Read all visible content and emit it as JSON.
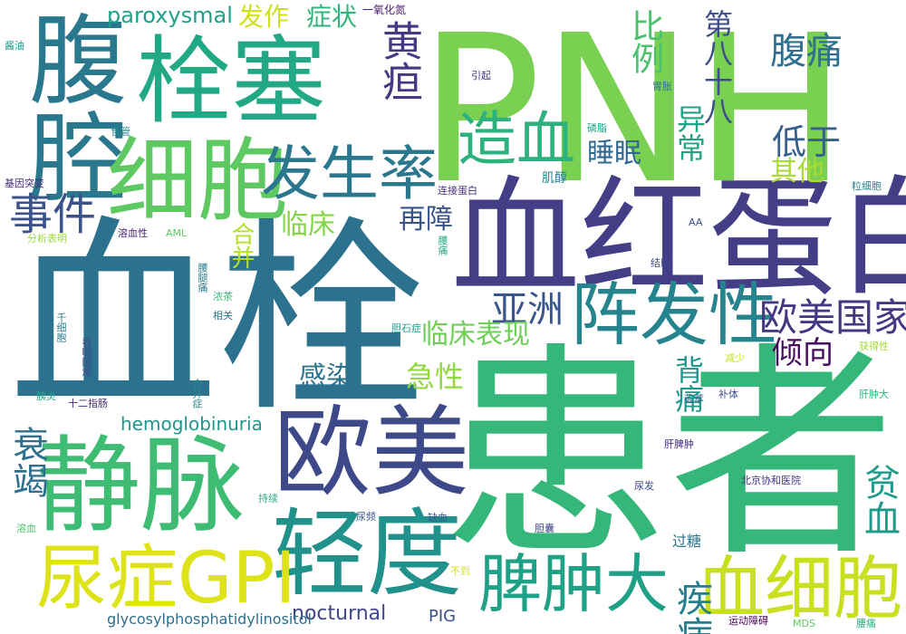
{
  "word_cloud": {
    "words": [
      {
        "text": "PNH",
        "color": "#7ad151"
      },
      {
        "text": "血栓",
        "color": "#2c728e"
      },
      {
        "text": "患者",
        "color": "#35b779"
      },
      {
        "text": "血红蛋白",
        "color": "#433e85"
      },
      {
        "text": "栓塞",
        "color": "#22a884"
      },
      {
        "text": "腹腔",
        "color": "#2a788e"
      },
      {
        "text": "细胞",
        "color": "#5ec962"
      },
      {
        "text": "静脉",
        "color": "#3fbc73"
      },
      {
        "text": "欧美",
        "color": "#3e4989"
      },
      {
        "text": "轻度",
        "color": "#21918c"
      },
      {
        "text": "尿症GPI",
        "color": "#dde318"
      },
      {
        "text": "血细胞",
        "color": "#c8e020"
      },
      {
        "text": "阵发性",
        "color": "#25848e"
      },
      {
        "text": "脾肿大",
        "color": "#1fa187"
      },
      {
        "text": "发生率",
        "color": "#2a778e"
      },
      {
        "text": "造血",
        "color": "#2db27d"
      },
      {
        "text": "黄疸",
        "color": "#443983"
      },
      {
        "text": "事件",
        "color": "#3b528b"
      },
      {
        "text": "衰竭",
        "color": "#2d708e"
      },
      {
        "text": "腹痛",
        "color": "#2e6e8e"
      },
      {
        "text": "比例",
        "color": "#4ac16d"
      },
      {
        "text": "第八十八",
        "color": "#3d4d8a"
      },
      {
        "text": "异常",
        "color": "#20a386"
      },
      {
        "text": "低于",
        "color": "#355f8d"
      },
      {
        "text": "睡眠",
        "color": "#31688e"
      },
      {
        "text": "其他",
        "color": "#a8db34"
      },
      {
        "text": "欧美国家",
        "color": "#453781"
      },
      {
        "text": "亚洲",
        "color": "#39558c"
      },
      {
        "text": "临床表现",
        "color": "#6ece58"
      },
      {
        "text": "倾向",
        "color": "#470d60"
      },
      {
        "text": "再障",
        "color": "#3a538b"
      },
      {
        "text": "合并",
        "color": "#b5de2b"
      },
      {
        "text": "临床",
        "color": "#86d549"
      },
      {
        "text": "感染",
        "color": "#2c738e"
      },
      {
        "text": "急性",
        "color": "#93d741"
      },
      {
        "text": "背痛",
        "color": "#1f988b"
      },
      {
        "text": "贫血",
        "color": "#1e9b8a"
      },
      {
        "text": "疾病",
        "color": "#277f8e"
      },
      {
        "text": "paroxysmal",
        "color": "#1fa088"
      },
      {
        "text": "发作",
        "color": "#d0e11c"
      },
      {
        "text": "症状",
        "color": "#31b57b"
      },
      {
        "text": "hemoglobinuria",
        "color": "#1f958b"
      },
      {
        "text": "nocturnal",
        "color": "#404588"
      },
      {
        "text": "glycosylphosphatidylinositol",
        "color": "#2e6f8e"
      },
      {
        "text": "PIG",
        "color": "#3b518b"
      },
      {
        "text": "过糖",
        "color": "#2b758e"
      },
      {
        "text": "一氧化氮",
        "color": "#481b6d"
      },
      {
        "text": "酱油",
        "color": "#20928c"
      },
      {
        "text": "食管",
        "color": "#24868e"
      },
      {
        "text": "引起",
        "color": "#463480"
      },
      {
        "text": "磷脂",
        "color": "#1fa287"
      },
      {
        "text": "胃胀",
        "color": "#2c738e"
      },
      {
        "text": "肌醇",
        "color": "#26828e"
      },
      {
        "text": "连接蛋白",
        "color": "#46307e"
      },
      {
        "text": "基因突变",
        "color": "#472d7b"
      },
      {
        "text": "粒细胞",
        "color": "#25858e"
      },
      {
        "text": "溶血性",
        "color": "#482173"
      },
      {
        "text": "AML",
        "color": "#60ca60"
      },
      {
        "text": "AA",
        "color": "#3c508b"
      },
      {
        "text": "分析表明",
        "color": "#9dd93b"
      },
      {
        "text": "腰痛",
        "color": "#22a785"
      },
      {
        "text": "腰腿痛",
        "color": "#29798e"
      },
      {
        "text": "浓茶",
        "color": "#3aba76"
      },
      {
        "text": "相关",
        "color": "#2b748e"
      },
      {
        "text": "胆石症",
        "color": "#1f9e89"
      },
      {
        "text": "结肠",
        "color": "#3f4889"
      },
      {
        "text": "千细胞",
        "color": "#287d8e"
      },
      {
        "text": "吞咽困难",
        "color": "#3e4c8a"
      },
      {
        "text": "获得性",
        "color": "#a2da37"
      },
      {
        "text": "减少",
        "color": "#c5e021"
      },
      {
        "text": "补体",
        "color": "#3d4e8a"
      },
      {
        "text": "荟萃",
        "color": "#31678e"
      },
      {
        "text": "肝肿大",
        "color": "#2fb47c"
      },
      {
        "text": "胰炎",
        "color": "#20a386"
      },
      {
        "text": "十二指肠",
        "color": "#482979"
      },
      {
        "text": "合并症",
        "color": "#25848e"
      },
      {
        "text": "肝脾肿",
        "color": "#472f7d"
      },
      {
        "text": "北京协和医院",
        "color": "#463480"
      },
      {
        "text": "尿发",
        "color": "#3e4a89"
      },
      {
        "text": "持续",
        "color": "#25ac82"
      },
      {
        "text": "溶血",
        "color": "#4cc26c"
      },
      {
        "text": "尿频",
        "color": "#38588c"
      },
      {
        "text": "缺血",
        "color": "#39568c"
      },
      {
        "text": "胆囊",
        "color": "#404688"
      },
      {
        "text": "不到",
        "color": "#d8e219"
      },
      {
        "text": "运动障碍",
        "color": "#440154"
      },
      {
        "text": "MDS",
        "color": "#60ca60"
      },
      {
        "text": "腰痛",
        "color": "#29af7f"
      }
    ]
  }
}
